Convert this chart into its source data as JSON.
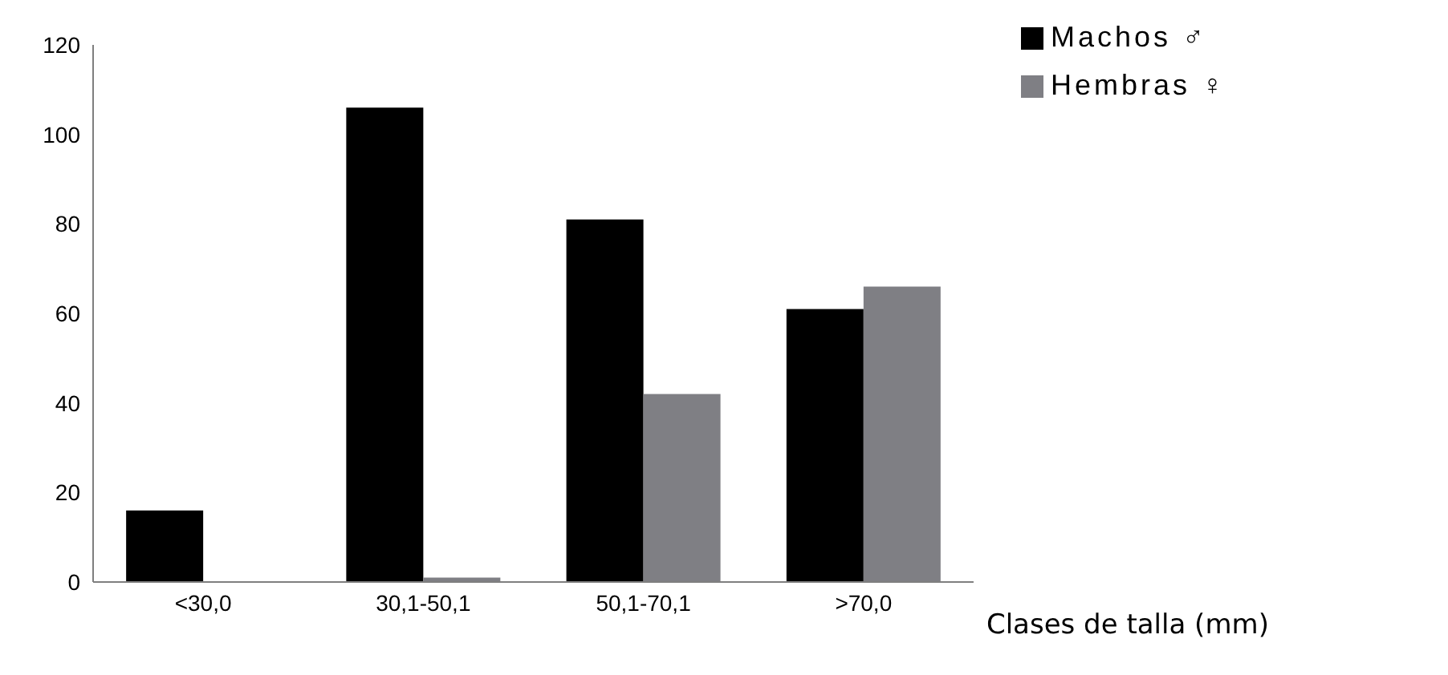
{
  "chart_data": {
    "type": "bar",
    "xlabel": "Clases de talla (mm)",
    "categories": [
      "<30,0",
      "30,1-50,1",
      "50,1-70,1",
      ">70,0"
    ],
    "series": [
      {
        "name": "Machos ♂",
        "color": "#000000",
        "values": [
          16,
          106,
          81,
          61
        ]
      },
      {
        "name": "Hembras ♀",
        "color": "#7f7f84",
        "values": [
          0,
          1,
          42,
          66
        ]
      }
    ],
    "ylim": [
      0,
      120
    ],
    "yticks": [
      0,
      20,
      40,
      60,
      80,
      100,
      120
    ],
    "grid": false,
    "legend": "top right"
  }
}
